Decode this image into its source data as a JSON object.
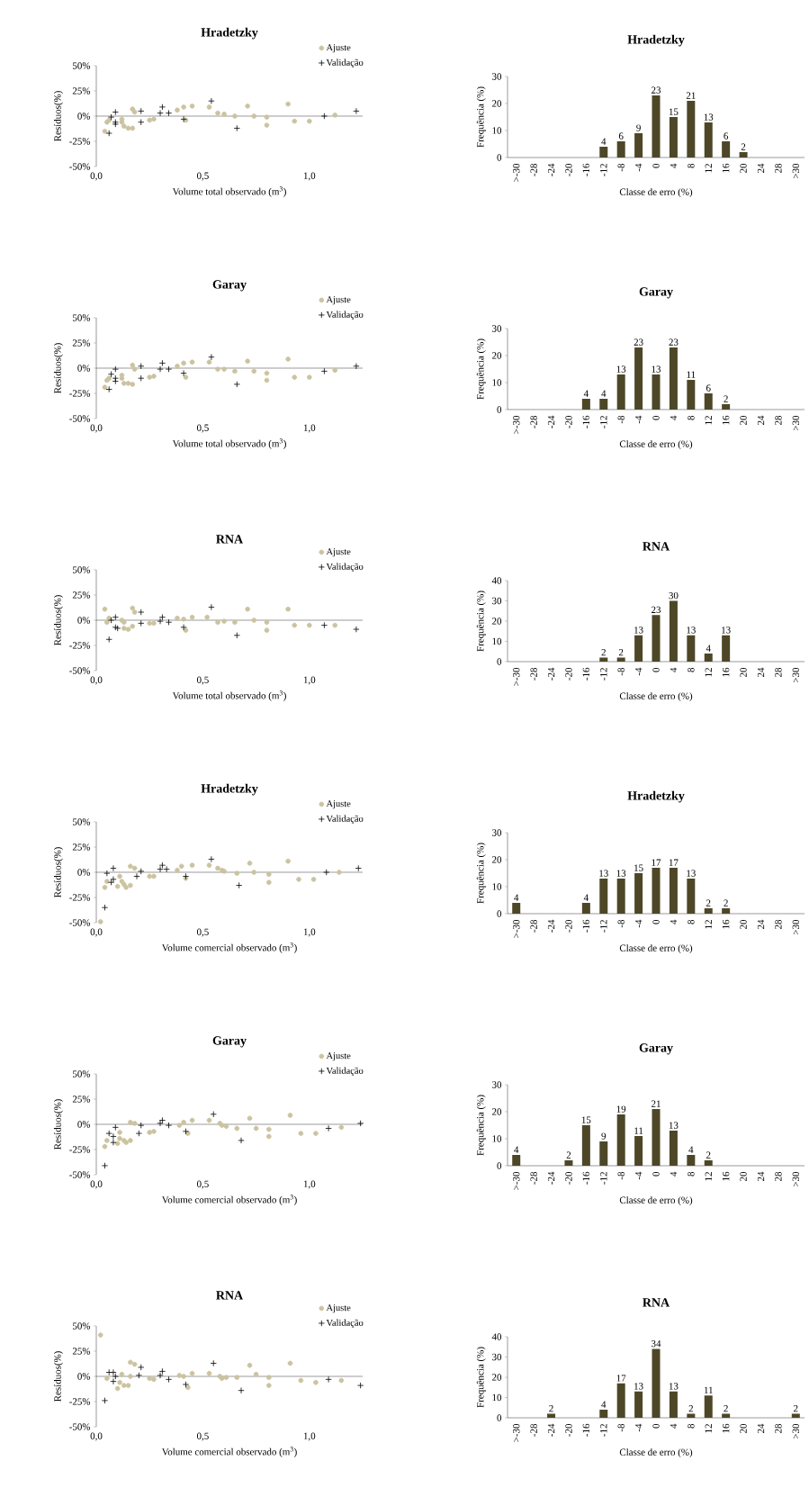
{
  "chart_data": [
    {
      "type": "scatter",
      "title": "Hradetzky",
      "xlabel": "Volume total observado (m$^{3}$)",
      "ylabel": "Resíduos(%)",
      "xlim": [
        0,
        1.25
      ],
      "xticks": [
        {
          "value": 0,
          "label": "0,0"
        },
        {
          "value": 0.5,
          "label": "0,5"
        },
        {
          "value": 1,
          "label": "1,0"
        }
      ],
      "ylim": [
        -50,
        50
      ],
      "yticks": [
        {
          "value": -50,
          "label": "-50%"
        },
        {
          "value": -25,
          "label": "-25%"
        },
        {
          "value": 0,
          "label": "0%"
        },
        {
          "value": 25,
          "label": "25%"
        },
        {
          "value": 50,
          "label": "50%"
        }
      ],
      "legend": "top right",
      "ref_lines": [
        {
          "axis": "y",
          "value": 0
        }
      ],
      "series": [
        {
          "name": "Ajuste",
          "color": "#cbc3a0",
          "marker": "circle",
          "x": [
            0.04,
            0.05,
            0.06,
            0.12,
            0.12,
            0.13,
            0.15,
            0.17,
            0.17,
            0.18,
            0.25,
            0.27,
            0.38,
            0.41,
            0.42,
            0.45,
            0.53,
            0.57,
            0.6,
            0.65,
            0.71,
            0.74,
            0.8,
            0.8,
            0.9,
            0.93,
            1.0,
            1.12
          ],
          "values": [
            -15,
            -6,
            -4,
            -3,
            -6,
            -10,
            -12,
            -12,
            7,
            4,
            -4,
            -3,
            6,
            9,
            -4,
            10,
            9,
            3,
            2,
            0,
            10,
            0,
            -1,
            -9,
            12,
            -5,
            -5,
            1
          ]
        },
        {
          "name": "Validação",
          "color": "#000000",
          "marker": "cross",
          "x": [
            0.06,
            0.07,
            0.09,
            0.09,
            0.09,
            0.21,
            0.21,
            0.31,
            0.3,
            0.34,
            0.41,
            0.54,
            0.66,
            1.07,
            1.22
          ],
          "values": [
            -17,
            -1,
            4,
            -6,
            -8,
            5,
            -6,
            9,
            3,
            3,
            -3,
            15,
            -12,
            0,
            5
          ]
        }
      ]
    },
    {
      "type": "bar",
      "title": "Hradetzky",
      "xlabel": "Classe de erro (%)",
      "ylabel": "Frequência (%)",
      "categories": [
        ">-30",
        "-28",
        "-24",
        "-20",
        "-16",
        "-12",
        "-8",
        "-4",
        "0",
        "4",
        "8",
        "12",
        "16",
        "20",
        "24",
        "28",
        ">30"
      ],
      "values": [
        0,
        0,
        0,
        0,
        0,
        4,
        6,
        9,
        23,
        15,
        21,
        13,
        6,
        2,
        0,
        0,
        0
      ],
      "value_labels": [
        null,
        null,
        null,
        null,
        null,
        "4",
        "6",
        "9",
        "23",
        "15",
        "21",
        "13",
        "6",
        "2",
        null,
        null,
        null
      ],
      "color": "#4d4727",
      "ylim": [
        0,
        30
      ],
      "yticks": [
        0,
        10,
        20,
        30
      ]
    },
    {
      "type": "scatter",
      "title": "Garay",
      "xlabel": "Volume total observado (m$^{3}$)",
      "ylabel": "Resíduos(%)",
      "xlim": [
        0,
        1.25
      ],
      "xticks": [
        {
          "value": 0,
          "label": "0,0"
        },
        {
          "value": 0.5,
          "label": "0,5"
        },
        {
          "value": 1,
          "label": "1,0"
        }
      ],
      "ylim": [
        -50,
        50
      ],
      "yticks": [
        {
          "value": -50,
          "label": "-50%"
        },
        {
          "value": -25,
          "label": "-25%"
        },
        {
          "value": 0,
          "label": "0%"
        },
        {
          "value": 25,
          "label": "25%"
        },
        {
          "value": 50,
          "label": "50%"
        }
      ],
      "legend": "top right",
      "ref_lines": [
        {
          "axis": "y",
          "value": 0
        }
      ],
      "series": [
        {
          "name": "Ajuste",
          "color": "#cbc3a0",
          "marker": "circle",
          "x": [
            0.04,
            0.05,
            0.06,
            0.12,
            0.12,
            0.13,
            0.15,
            0.17,
            0.17,
            0.18,
            0.25,
            0.27,
            0.38,
            0.41,
            0.42,
            0.45,
            0.53,
            0.57,
            0.6,
            0.65,
            0.71,
            0.74,
            0.8,
            0.8,
            0.9,
            0.93,
            1.0,
            1.12
          ],
          "values": [
            -19,
            -12,
            -10,
            -7,
            -10,
            -15,
            -15,
            -16,
            3,
            -1,
            -9,
            -8,
            2,
            5,
            -9,
            6,
            6,
            -1,
            -1,
            -3,
            7,
            -3,
            -5,
            -12,
            9,
            -9,
            -9,
            -2
          ]
        },
        {
          "name": "Validação",
          "color": "#000000",
          "marker": "cross",
          "x": [
            0.06,
            0.07,
            0.09,
            0.09,
            0.09,
            0.21,
            0.21,
            0.31,
            0.3,
            0.34,
            0.41,
            0.54,
            0.66,
            1.07,
            1.22
          ],
          "values": [
            -21,
            -6,
            -1,
            -10,
            -13,
            2,
            -10,
            5,
            -1,
            -1,
            -5,
            11,
            -16,
            -3,
            2
          ]
        }
      ]
    },
    {
      "type": "bar",
      "title": "Garay",
      "xlabel": "Classe de erro (%)",
      "ylabel": "Frequência (%)",
      "categories": [
        ">-30",
        "-28",
        "-24",
        "-20",
        "-16",
        "-12",
        "-8",
        "-4",
        "0",
        "4",
        "8",
        "12",
        "16",
        "20",
        "24",
        "28",
        ">30"
      ],
      "values": [
        0,
        0,
        0,
        0,
        4,
        4,
        13,
        23,
        13,
        23,
        11,
        6,
        2,
        0,
        0,
        0,
        0
      ],
      "value_labels": [
        null,
        null,
        null,
        null,
        "4",
        "4",
        "13",
        "23",
        "13",
        "23",
        "11",
        "6",
        "2",
        null,
        null,
        null,
        null
      ],
      "color": "#4d4727",
      "ylim": [
        0,
        30
      ],
      "yticks": [
        0,
        10,
        20,
        30
      ]
    },
    {
      "type": "scatter",
      "title": "RNA",
      "xlabel": "Volume total observado (m$^{3}$)",
      "ylabel": "Resíduos(%)",
      "xlim": [
        0,
        1.25
      ],
      "xticks": [
        {
          "value": 0,
          "label": "0,0"
        },
        {
          "value": 0.5,
          "label": "0,5"
        },
        {
          "value": 1,
          "label": "1,0"
        }
      ],
      "ylim": [
        -50,
        50
      ],
      "yticks": [
        {
          "value": -50,
          "label": "-50%"
        },
        {
          "value": -25,
          "label": "-25%"
        },
        {
          "value": 0,
          "label": "0%"
        },
        {
          "value": 25,
          "label": "25%"
        },
        {
          "value": 50,
          "label": "50%"
        }
      ],
      "legend": "top right",
      "ref_lines": [
        {
          "axis": "y",
          "value": 0
        }
      ],
      "series": [
        {
          "name": "Ajuste",
          "color": "#cbc3a0",
          "marker": "circle",
          "x": [
            0.04,
            0.06,
            0.05,
            0.12,
            0.13,
            0.13,
            0.15,
            0.17,
            0.17,
            0.18,
            0.25,
            0.27,
            0.38,
            0.41,
            0.42,
            0.45,
            0.52,
            0.57,
            0.6,
            0.65,
            0.71,
            0.74,
            0.8,
            0.8,
            0.9,
            0.93,
            1.0,
            1.12
          ],
          "values": [
            11,
            2,
            -2,
            0,
            -2,
            -8,
            -9,
            -6,
            12,
            8,
            -3,
            -3,
            2,
            1,
            -10,
            3,
            3,
            -2,
            -1,
            -2,
            11,
            0,
            -2,
            -10,
            11,
            -5,
            -5,
            -5
          ]
        },
        {
          "name": "Validação",
          "color": "#000000",
          "marker": "cross",
          "x": [
            0.06,
            0.07,
            0.09,
            0.09,
            0.1,
            0.21,
            0.21,
            0.31,
            0.3,
            0.34,
            0.41,
            0.54,
            0.66,
            1.07,
            1.22
          ],
          "values": [
            -19,
            0,
            3,
            -7,
            -8,
            8,
            -3,
            3,
            -1,
            -2,
            -7,
            13,
            -15,
            -5,
            -9
          ]
        }
      ]
    },
    {
      "type": "bar",
      "title": "RNA",
      "xlabel": "Classe de erro (%)",
      "ylabel": "Frequência (%)",
      "categories": [
        ">-30",
        "-28",
        "-24",
        "-20",
        "-16",
        "-12",
        "-8",
        "-4",
        "0",
        "4",
        "8",
        "12",
        "16",
        "20",
        "24",
        "28",
        ">30"
      ],
      "values": [
        0,
        0,
        0,
        0,
        0,
        2,
        2,
        13,
        23,
        30,
        13,
        4,
        13,
        0,
        0,
        0,
        0
      ],
      "value_labels": [
        null,
        null,
        null,
        null,
        null,
        "2",
        "2",
        "13",
        "23",
        "30",
        "13",
        "4",
        "13",
        null,
        null,
        null,
        null
      ],
      "color": "#4d4727",
      "ylim": [
        0,
        40
      ],
      "yticks": [
        0,
        10,
        20,
        30,
        40
      ]
    },
    {
      "type": "scatter",
      "title": "Hradetzky",
      "xlabel": "Volume comercial observado (m$^{3}$)",
      "ylabel": "Resíduos(%)",
      "xlim": [
        0,
        1.25
      ],
      "xticks": [
        {
          "value": 0,
          "label": "0,0"
        },
        {
          "value": 0.5,
          "label": "0,5"
        },
        {
          "value": 1,
          "label": "1,0"
        }
      ],
      "ylim": [
        -50,
        50
      ],
      "yticks": [
        {
          "value": -50,
          "label": "-50%"
        },
        {
          "value": -25,
          "label": "-25%"
        },
        {
          "value": 0,
          "label": "0%"
        },
        {
          "value": 25,
          "label": "25%"
        },
        {
          "value": 50,
          "label": "50%"
        }
      ],
      "legend": "top right",
      "ref_lines": [
        {
          "axis": "y",
          "value": 0
        }
      ],
      "series": [
        {
          "name": "Ajuste",
          "color": "#cbc3a0",
          "marker": "circle",
          "x": [
            0.02,
            0.04,
            0.05,
            0.1,
            0.11,
            0.12,
            0.13,
            0.14,
            0.16,
            0.16,
            0.18,
            0.25,
            0.27,
            0.38,
            0.4,
            0.42,
            0.45,
            0.53,
            0.57,
            0.59,
            0.6,
            0.66,
            0.72,
            0.74,
            0.81,
            0.81,
            0.9,
            0.95,
            1.02,
            1.14
          ],
          "values": [
            -49,
            -15,
            -9,
            -14,
            -4,
            -9,
            -12,
            -15,
            -13,
            6,
            4,
            -4,
            -4,
            2,
            6,
            -6,
            7,
            7,
            4,
            2,
            1,
            -1,
            9,
            0,
            -2,
            -10,
            11,
            -7,
            -7,
            0
          ]
        },
        {
          "name": "Validação",
          "color": "#000000",
          "marker": "cross",
          "x": [
            0.04,
            0.05,
            0.07,
            0.08,
            0.08,
            0.19,
            0.21,
            0.3,
            0.31,
            0.33,
            0.42,
            0.54,
            0.67,
            1.08,
            1.23
          ],
          "values": [
            -35,
            -1,
            -10,
            4,
            -7,
            -4,
            1,
            3,
            7,
            3,
            -4,
            13,
            -13,
            0,
            4
          ]
        }
      ]
    },
    {
      "type": "bar",
      "title": "Hradetzky",
      "xlabel": "Classe de erro (%)",
      "ylabel": "Frequência (%)",
      "categories": [
        ">-30",
        "-28",
        "-24",
        "-20",
        "-16",
        "-12",
        "-8",
        "-4",
        "0",
        "4",
        "8",
        "12",
        "16",
        "20",
        "24",
        "28",
        ">30"
      ],
      "values": [
        4,
        0,
        0,
        0,
        4,
        13,
        13,
        15,
        17,
        17,
        13,
        2,
        2,
        0,
        0,
        0,
        0
      ],
      "value_labels": [
        "4",
        null,
        null,
        null,
        "4",
        "13",
        "13",
        "15",
        "17",
        "17",
        "13",
        "2",
        "2",
        null,
        null,
        null,
        null
      ],
      "color": "#4d4727",
      "ylim": [
        0,
        30
      ],
      "yticks": [
        0,
        10,
        20,
        30
      ]
    },
    {
      "type": "scatter",
      "title": "Garay",
      "xlabel": "Volume comercial observado (m$^{3}$)",
      "ylabel": "Resíduos(%)",
      "xlim": [
        0,
        1.25
      ],
      "xticks": [
        {
          "value": 0,
          "label": "0,0"
        },
        {
          "value": 0.5,
          "label": "0,5"
        },
        {
          "value": 1,
          "label": "1,0"
        }
      ],
      "ylim": [
        -50,
        50
      ],
      "yticks": [
        {
          "value": -50,
          "label": "-50%"
        },
        {
          "value": -25,
          "label": "-25%"
        },
        {
          "value": 0,
          "label": "0%"
        },
        {
          "value": 25,
          "label": "25%"
        },
        {
          "value": 50,
          "label": "50%"
        }
      ],
      "legend": "top right",
      "ref_lines": [
        {
          "axis": "y",
          "value": 0
        }
      ],
      "series": [
        {
          "name": "Ajuste",
          "color": "#cbc3a0",
          "marker": "circle",
          "x": [
            0.04,
            0.05,
            0.11,
            0.1,
            0.11,
            0.13,
            0.14,
            0.16,
            0.16,
            0.18,
            0.25,
            0.27,
            0.39,
            0.41,
            0.43,
            0.45,
            0.53,
            0.58,
            0.59,
            0.61,
            0.66,
            0.72,
            0.75,
            0.81,
            0.81,
            0.91,
            0.96,
            1.03,
            1.15
          ],
          "values": [
            -22,
            -16,
            -8,
            -19,
            -14,
            -16,
            -18,
            -16,
            2,
            1,
            -8,
            -7,
            -1,
            2,
            -9,
            4,
            4,
            1,
            -1,
            -2,
            -4,
            6,
            -4,
            -5,
            -12,
            9,
            -9,
            -9,
            -3
          ]
        },
        {
          "name": "Validação",
          "color": "#000000",
          "marker": "cross",
          "x": [
            0.04,
            0.06,
            0.08,
            0.09,
            0.08,
            0.2,
            0.21,
            0.3,
            0.31,
            0.34,
            0.42,
            0.55,
            0.68,
            1.09,
            1.24
          ],
          "values": [
            -41,
            -9,
            -18,
            -3,
            -12,
            -9,
            -1,
            1,
            4,
            -1,
            -7,
            10,
            -16,
            -4,
            1
          ]
        }
      ]
    },
    {
      "type": "bar",
      "title": "Garay",
      "xlabel": "Classe de erro (%)",
      "ylabel": "Frequência (%)",
      "categories": [
        ">-30",
        "-28",
        "-24",
        "-20",
        "-16",
        "-12",
        "-8",
        "-4",
        "0",
        "4",
        "8",
        "12",
        "16",
        "20",
        "24",
        "28",
        ">30"
      ],
      "values": [
        4,
        0,
        0,
        2,
        15,
        9,
        19,
        11,
        21,
        13,
        4,
        2,
        0,
        0,
        0,
        0,
        0
      ],
      "value_labels": [
        "4",
        null,
        null,
        "2",
        "15",
        "9",
        "19",
        "11",
        "21",
        "13",
        "4",
        "2",
        null,
        null,
        null,
        null,
        null
      ],
      "color": "#4d4727",
      "ylim": [
        0,
        30
      ],
      "yticks": [
        0,
        10,
        20,
        30
      ]
    },
    {
      "type": "scatter",
      "title": "RNA",
      "xlabel": "Volume comercial observado (m$^{3}$)",
      "ylabel": "Resíduos(%)",
      "xlim": [
        0,
        1.25
      ],
      "xticks": [
        {
          "value": 0,
          "label": "0,0"
        },
        {
          "value": 0.5,
          "label": "0,5"
        },
        {
          "value": 1,
          "label": "1,0"
        }
      ],
      "ylim": [
        -50,
        50
      ],
      "yticks": [
        {
          "value": -50,
          "label": "-50%"
        },
        {
          "value": -25,
          "label": "-25%"
        },
        {
          "value": 0,
          "label": "0%"
        },
        {
          "value": 25,
          "label": "25%"
        },
        {
          "value": 50,
          "label": "50%"
        }
      ],
      "legend": "top right",
      "ref_lines": [
        {
          "axis": "y",
          "value": 0
        }
      ],
      "series": [
        {
          "name": "Ajuste",
          "color": "#cbc3a0",
          "marker": "circle",
          "x": [
            0.02,
            0.05,
            0.11,
            0.1,
            0.12,
            0.13,
            0.15,
            0.16,
            0.18,
            0.16,
            0.25,
            0.27,
            0.39,
            0.41,
            0.43,
            0.45,
            0.53,
            0.58,
            0.59,
            0.61,
            0.66,
            0.72,
            0.75,
            0.81,
            0.81,
            0.91,
            0.96,
            1.03,
            1.15
          ],
          "values": [
            41,
            -2,
            -6,
            -12,
            2,
            -9,
            -9,
            14,
            12,
            0,
            -2,
            -3,
            1,
            0,
            -11,
            3,
            3,
            0,
            -2,
            -1,
            -1,
            11,
            2,
            -1,
            -9,
            13,
            -4,
            -6,
            -4
          ]
        },
        {
          "name": "Validação",
          "color": "#000000",
          "marker": "cross",
          "x": [
            0.04,
            0.06,
            0.08,
            0.08,
            0.09,
            0.2,
            0.21,
            0.3,
            0.31,
            0.34,
            0.42,
            0.55,
            0.68,
            1.09,
            1.24
          ],
          "values": [
            -24,
            4,
            4,
            -5,
            0,
            1,
            9,
            1,
            5,
            -3,
            -8,
            13,
            -14,
            -3,
            -9
          ]
        }
      ]
    },
    {
      "type": "bar",
      "title": "RNA",
      "xlabel": "Classe de erro (%)",
      "ylabel": "Frequência (%)",
      "categories": [
        ">-30",
        "-28",
        "-24",
        "-20",
        "-16",
        "-12",
        "-8",
        "-4",
        "0",
        "4",
        "8",
        "12",
        "16",
        "20",
        "24",
        "28",
        ">30"
      ],
      "values": [
        0,
        0,
        2,
        0,
        0,
        4,
        17,
        13,
        34,
        13,
        2,
        11,
        2,
        0,
        0,
        0,
        2
      ],
      "value_labels": [
        null,
        null,
        "2",
        null,
        null,
        "4",
        "17",
        "13",
        "34",
        "13",
        "2",
        "11",
        "2",
        null,
        null,
        null,
        "2"
      ],
      "color": "#4d4727",
      "ylim": [
        0,
        40
      ],
      "yticks": [
        0,
        10,
        20,
        30,
        40
      ]
    }
  ]
}
